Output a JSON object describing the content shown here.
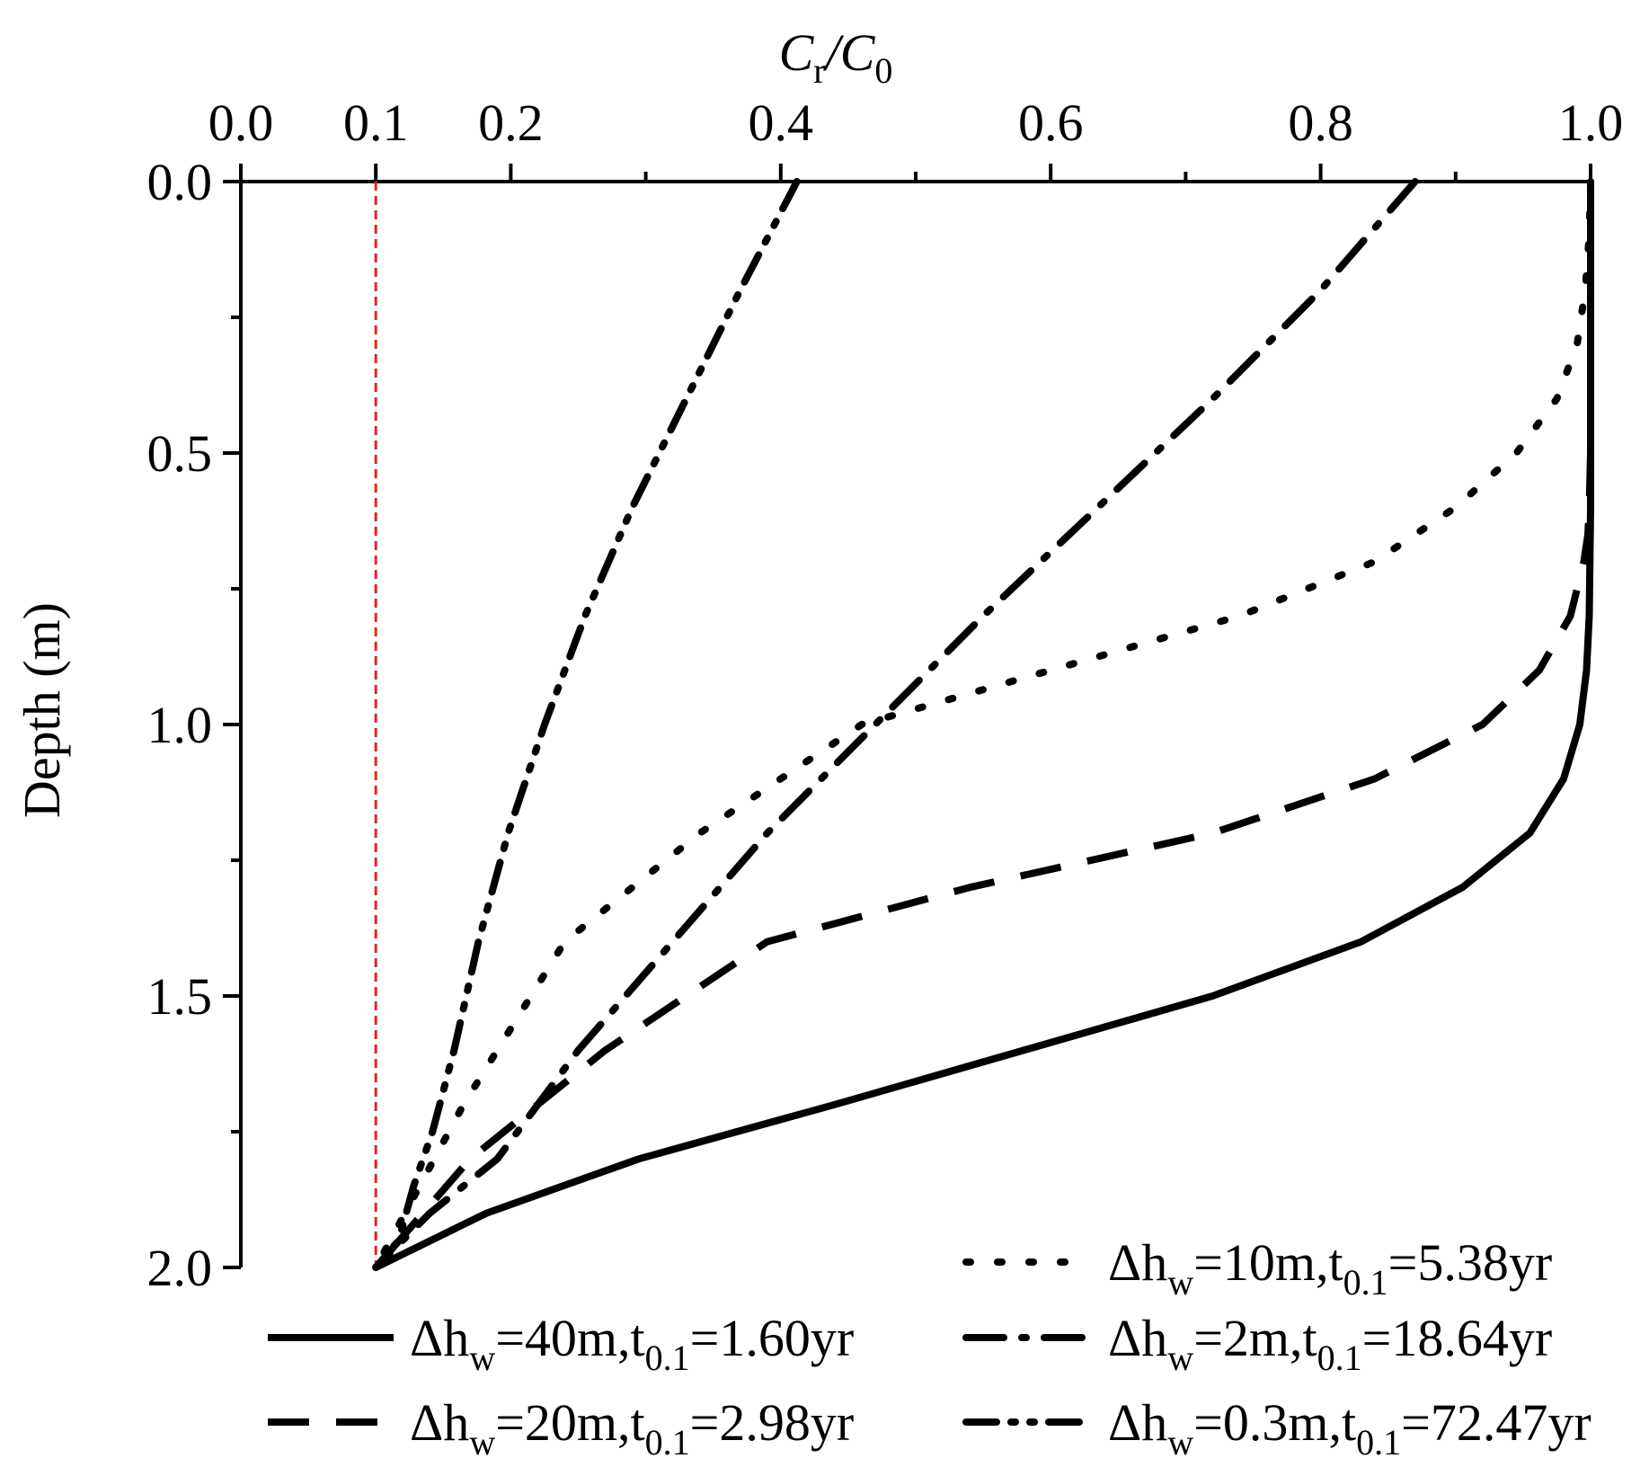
{
  "chart_data": {
    "type": "line",
    "title": "",
    "xlabel": {
      "main": "C",
      "sub1": "r",
      "sep": "/C",
      "sub2": "0"
    },
    "ylabel": "Depth (m)",
    "xlim": [
      0.0,
      1.0
    ],
    "ylim": [
      0.0,
      2.0
    ],
    "x_axis_position": "top",
    "y_inverted": true,
    "x_ticks": [
      "0.0",
      "0.1",
      "0.2",
      "0.4",
      "0.6",
      "0.8",
      "1.0"
    ],
    "x_tick_values": [
      0.0,
      0.1,
      0.2,
      0.4,
      0.6,
      0.8,
      1.0
    ],
    "x_minor_ticks": [
      0.3,
      0.5,
      0.7,
      0.9
    ],
    "y_ticks": [
      "0.0",
      "0.5",
      "1.0",
      "1.5",
      "2.0"
    ],
    "y_tick_values": [
      0.0,
      0.5,
      1.0,
      1.5,
      2.0
    ],
    "y_minor_ticks": [
      0.25,
      0.75,
      1.25,
      1.75
    ],
    "reference_line": {
      "x": 0.1,
      "color": "#e8221b",
      "style": "dashed"
    },
    "series": [
      {
        "name": "Δhw=40m,t0.1=1.60yr",
        "label": {
          "pre": "Δh",
          "s1": "w",
          "mid": "=40m,t",
          "s2": "0.1",
          "post": "=1.60yr"
        },
        "style": "solid",
        "x": [
          1.0,
          1.0,
          1.0,
          1.0,
          1.0,
          1.0,
          1.0,
          0.999,
          0.997,
          0.992,
          0.98,
          0.955,
          0.905,
          0.83,
          0.72,
          0.58,
          0.44,
          0.295,
          0.182,
          0.1
        ],
        "y": [
          0.0,
          0.1,
          0.2,
          0.3,
          0.4,
          0.5,
          0.6,
          0.8,
          0.9,
          1.0,
          1.1,
          1.2,
          1.3,
          1.4,
          1.5,
          1.6,
          1.7,
          1.8,
          1.9,
          2.0
        ]
      },
      {
        "name": "Δhw=20m,t0.1=2.98yr",
        "label": {
          "pre": "Δh",
          "s1": "w",
          "mid": "=20m,t",
          "s2": "0.1",
          "post": "=2.98yr"
        },
        "style": "dashed",
        "x": [
          1.0,
          1.0,
          1.0,
          1.0,
          0.999,
          0.998,
          0.995,
          0.985,
          0.962,
          0.92,
          0.84,
          0.72,
          0.54,
          0.39,
          0.27,
          0.17,
          0.1
        ],
        "y": [
          0.0,
          0.2,
          0.4,
          0.5,
          0.6,
          0.65,
          0.7,
          0.8,
          0.9,
          1.0,
          1.1,
          1.2,
          1.3,
          1.4,
          1.6,
          1.8,
          2.0
        ]
      },
      {
        "name": "Δhw=10m,t0.1=5.38yr",
        "label": {
          "pre": "Δh",
          "s1": "w",
          "mid": "=10m,t",
          "s2": "0.1",
          "post": "=5.38yr"
        },
        "style": "dotted",
        "x": [
          1.0,
          0.999,
          0.996,
          0.99,
          0.975,
          0.945,
          0.9,
          0.84,
          0.74,
          0.6,
          0.46,
          0.34,
          0.24,
          0.165,
          0.1
        ],
        "y": [
          0.0,
          0.1,
          0.2,
          0.3,
          0.4,
          0.5,
          0.6,
          0.7,
          0.8,
          0.9,
          1.0,
          1.2,
          1.4,
          1.7,
          2.0
        ]
      },
      {
        "name": "Δhw=2m,t0.1=18.64yr",
        "label": {
          "pre": "Δh",
          "s1": "w",
          "mid": "=2m,t",
          "s2": "0.1",
          "post": "=18.64yr"
        },
        "style": "dashdot",
        "x": [
          0.87,
          0.8,
          0.72,
          0.635,
          0.55,
          0.47,
          0.39,
          0.32,
          0.25,
          0.19,
          0.14,
          0.1
        ],
        "y": [
          0.0,
          0.2,
          0.4,
          0.6,
          0.8,
          1.0,
          1.2,
          1.4,
          1.6,
          1.8,
          1.9,
          2.0
        ]
      },
      {
        "name": "Δhw=0.3m,t0.1=72.47yr",
        "label": {
          "pre": "Δh",
          "s1": "w",
          "mid": "=0.3m,t",
          "s2": "0.1",
          "post": "=72.47yr"
        },
        "style": "dashdotdot",
        "x": [
          0.412,
          0.37,
          0.33,
          0.29,
          0.255,
          0.225,
          0.198,
          0.176,
          0.158,
          0.142,
          0.128,
          0.117,
          0.1
        ],
        "y": [
          0.0,
          0.2,
          0.4,
          0.6,
          0.8,
          1.0,
          1.2,
          1.4,
          1.6,
          1.75,
          1.85,
          1.95,
          2.0
        ]
      }
    ],
    "legend_position": "bottom"
  }
}
